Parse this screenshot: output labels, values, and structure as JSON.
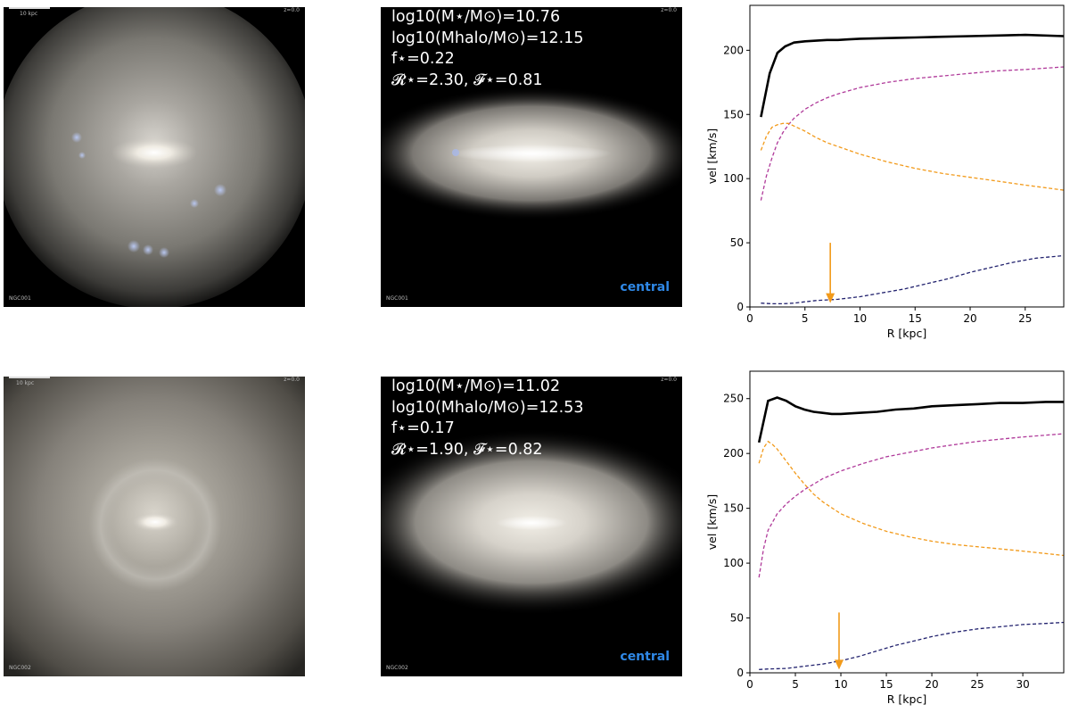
{
  "panels": [
    {
      "face_on": {
        "scale_label": "10 kpc",
        "redshift_label": "z=0.0",
        "sim_label": "NGC001"
      },
      "edge_on": {
        "line1": "log10(M⋆/M⊙)=10.76",
        "line2": "log10(Mhalo/M⊙)=12.15",
        "line3": "f⋆=0.22",
        "line4": "𝓡⋆=2.30, 𝓕⋆=0.81",
        "redshift_label": "z=0.0",
        "sim_label": "NGC001",
        "status": "central"
      }
    },
    {
      "face_on": {
        "scale_label": "10 kpc",
        "redshift_label": "z=0.0",
        "sim_label": "NGC002"
      },
      "edge_on": {
        "line1": "log10(M⋆/M⊙)=11.02",
        "line2": "log10(Mhalo/M⊙)=12.53",
        "line3": "f⋆=0.17",
        "line4": "𝓡⋆=1.90, 𝓕⋆=0.82",
        "redshift_label": "z=0.0",
        "sim_label": "NGC002",
        "status": "central"
      }
    }
  ],
  "chart_data": [
    {
      "type": "line",
      "xlabel": "R [kpc]",
      "ylabel": "vel [km/s]",
      "xlim": [
        0,
        28.5
      ],
      "ylim": [
        0,
        235
      ],
      "xticks": [
        0,
        5,
        10,
        15,
        20,
        25
      ],
      "yticks": [
        0,
        50,
        100,
        150,
        200
      ],
      "grid": false,
      "legend": "none",
      "series": [
        {
          "color": "#000000",
          "style": "solid",
          "x": [
            1.0,
            1.8,
            2.5,
            3.2,
            4.0,
            5.0,
            6.0,
            7.0,
            8.0,
            9.0,
            10.0,
            12.5,
            15.0,
            17.5,
            20.0,
            22.5,
            25.0,
            28.5
          ],
          "y": [
            148,
            182,
            198,
            203,
            206,
            207,
            207.5,
            208,
            208,
            208.5,
            209,
            209.5,
            210,
            210.5,
            211,
            211.5,
            212,
            211
          ]
        },
        {
          "color": "#b03a9a",
          "style": "dashed",
          "x": [
            1.0,
            1.5,
            2.0,
            2.5,
            3.0,
            3.5,
            4.0,
            5.0,
            6.0,
            7.0,
            8.0,
            10.0,
            12.5,
            15.0,
            17.5,
            20.0,
            22.5,
            25.0,
            28.5
          ],
          "y": [
            83,
            102,
            116,
            128,
            136,
            142,
            147,
            154,
            159,
            163,
            166,
            171,
            175,
            178,
            180,
            182,
            184,
            185,
            187
          ]
        },
        {
          "color": "#f29a1a",
          "style": "dashed",
          "x": [
            1.0,
            1.5,
            2.0,
            2.5,
            3.0,
            3.5,
            4.0,
            5.0,
            6.0,
            7.0,
            8.0,
            10.0,
            12.5,
            15.0,
            17.5,
            20.0,
            22.5,
            25.0,
            28.5
          ],
          "y": [
            122,
            133,
            140,
            142,
            143,
            143,
            141,
            137,
            132,
            128,
            125,
            119,
            113,
            108,
            104,
            101,
            98,
            95,
            91
          ]
        },
        {
          "color": "#22226e",
          "style": "dashed",
          "x": [
            1.0,
            2.0,
            3.0,
            4.0,
            5.0,
            6.0,
            7.0,
            8.0,
            10.0,
            12.0,
            14.0,
            16.0,
            18.0,
            20.0,
            22.0,
            24.0,
            26.0,
            28.5
          ],
          "y": [
            3,
            2.5,
            2.5,
            3,
            4,
            5,
            5.5,
            6,
            8,
            11,
            14,
            18,
            22,
            27,
            31,
            35,
            38,
            40
          ]
        }
      ],
      "annotations": [
        {
          "type": "arrow",
          "color": "#f29a1a",
          "x": 7.3,
          "y_from": 50,
          "y_to": 3
        }
      ]
    },
    {
      "type": "line",
      "xlabel": "R [kpc]",
      "ylabel": "vel [km/s]",
      "xlim": [
        0,
        34.5
      ],
      "ylim": [
        0,
        275
      ],
      "xticks": [
        0,
        5,
        10,
        15,
        20,
        25,
        30
      ],
      "yticks": [
        0,
        50,
        100,
        150,
        200,
        250
      ],
      "grid": false,
      "legend": "none",
      "series": [
        {
          "color": "#000000",
          "style": "solid",
          "x": [
            1.0,
            2.0,
            3.0,
            4.0,
            5.0,
            6.0,
            7.0,
            8.0,
            9.0,
            10.0,
            12.0,
            14.0,
            16.0,
            18.0,
            20.0,
            22.5,
            25.0,
            27.5,
            30.0,
            32.5,
            34.5
          ],
          "y": [
            210,
            248,
            251,
            248,
            243,
            240,
            238,
            237,
            236,
            236,
            237,
            238,
            240,
            241,
            243,
            244,
            245,
            246,
            246,
            247,
            247
          ]
        },
        {
          "color": "#b03a9a",
          "style": "dashed",
          "x": [
            1.0,
            1.5,
            2.0,
            3.0,
            4.0,
            5.0,
            6.0,
            7.0,
            8.0,
            10.0,
            12.5,
            15.0,
            17.5,
            20.0,
            22.5,
            25.0,
            27.5,
            30.0,
            34.5
          ],
          "y": [
            87,
            113,
            130,
            145,
            154,
            161,
            167,
            172,
            177,
            184,
            191,
            197,
            201,
            205,
            208,
            211,
            213,
            215,
            218
          ]
        },
        {
          "color": "#f29a1a",
          "style": "dashed",
          "x": [
            1.0,
            1.5,
            2.0,
            2.5,
            3.0,
            4.0,
            5.0,
            6.0,
            7.0,
            8.0,
            10.0,
            12.5,
            15.0,
            17.5,
            20.0,
            22.5,
            25.0,
            27.5,
            30.0,
            34.5
          ],
          "y": [
            191,
            205,
            211,
            208,
            204,
            193,
            182,
            172,
            163,
            156,
            145,
            136,
            129,
            124,
            120,
            117,
            115,
            113,
            111,
            107
          ]
        },
        {
          "color": "#22226e",
          "style": "dashed",
          "x": [
            1.0,
            2.0,
            4.0,
            6.0,
            8.0,
            10.0,
            12.0,
            14.0,
            16.0,
            18.0,
            20.0,
            22.5,
            25.0,
            27.5,
            30.0,
            32.5,
            34.5
          ],
          "y": [
            3,
            3.5,
            4,
            6,
            8,
            11,
            15,
            20,
            25,
            29,
            33,
            37,
            40,
            42,
            44,
            45,
            46
          ]
        }
      ],
      "annotations": [
        {
          "type": "arrow",
          "color": "#f29a1a",
          "x": 9.8,
          "y_from": 55,
          "y_to": 3
        }
      ]
    }
  ]
}
